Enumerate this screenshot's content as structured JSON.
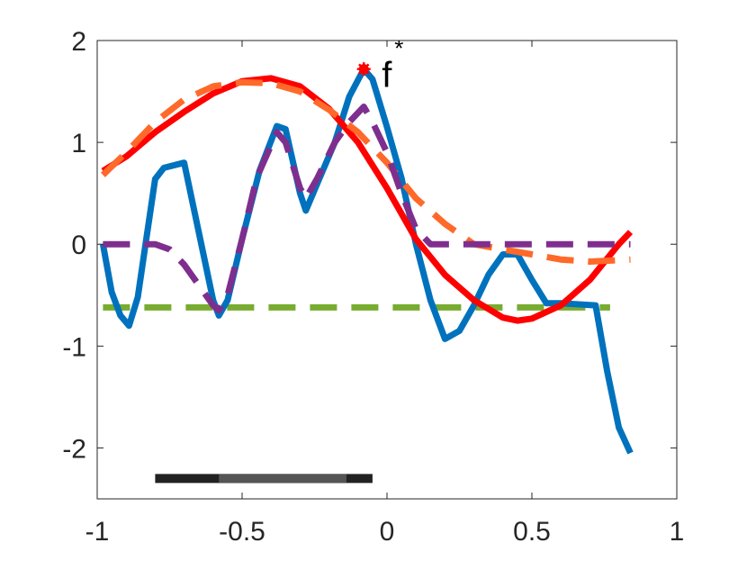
{
  "chart_data": {
    "type": "line",
    "xlim": [
      -1,
      1
    ],
    "ylim": [
      -2.5,
      2
    ],
    "x_ticks": [
      -1,
      -0.5,
      0,
      0.5,
      1
    ],
    "x_tick_labels": [
      "-1",
      "-0.5",
      "0",
      "0.5",
      "1"
    ],
    "y_ticks": [
      -2,
      -1,
      0,
      1,
      2
    ],
    "y_tick_labels": [
      "-2",
      "-1",
      "0",
      "1",
      "2"
    ],
    "grid": false,
    "series": [
      {
        "color": "#0072BD",
        "style": "solid",
        "points": [
          [
            -0.98,
            0.0
          ],
          [
            -0.95,
            -0.47
          ],
          [
            -0.92,
            -0.7
          ],
          [
            -0.89,
            -0.8
          ],
          [
            -0.86,
            -0.52
          ],
          [
            -0.83,
            0.06
          ],
          [
            -0.8,
            0.64
          ],
          [
            -0.77,
            0.75
          ],
          [
            -0.7,
            0.8
          ],
          [
            -0.6,
            -0.55
          ],
          [
            -0.58,
            -0.7
          ],
          [
            -0.55,
            -0.55
          ],
          [
            -0.5,
            0.05
          ],
          [
            -0.44,
            0.72
          ],
          [
            -0.38,
            1.16
          ],
          [
            -0.35,
            1.13
          ],
          [
            -0.3,
            0.5
          ],
          [
            -0.28,
            0.33
          ],
          [
            -0.24,
            0.6
          ],
          [
            -0.18,
            1.0
          ],
          [
            -0.13,
            1.45
          ],
          [
            -0.08,
            1.72
          ],
          [
            -0.05,
            1.62
          ],
          [
            0.0,
            1.15
          ],
          [
            0.05,
            0.65
          ],
          [
            0.1,
            0.0
          ],
          [
            0.15,
            -0.55
          ],
          [
            0.2,
            -0.93
          ],
          [
            0.25,
            -0.85
          ],
          [
            0.3,
            -0.6
          ],
          [
            0.35,
            -0.3
          ],
          [
            0.4,
            -0.1
          ],
          [
            0.45,
            -0.1
          ],
          [
            0.5,
            -0.35
          ],
          [
            0.55,
            -0.58
          ],
          [
            0.6,
            -0.58
          ],
          [
            0.72,
            -0.6
          ],
          [
            0.76,
            -1.25
          ],
          [
            0.8,
            -1.8
          ],
          [
            0.84,
            -2.05
          ]
        ]
      },
      {
        "color": "#FF0000",
        "style": "solid",
        "points": [
          [
            -0.98,
            0.72
          ],
          [
            -0.9,
            0.86
          ],
          [
            -0.8,
            1.1
          ],
          [
            -0.7,
            1.3
          ],
          [
            -0.6,
            1.48
          ],
          [
            -0.5,
            1.6
          ],
          [
            -0.4,
            1.63
          ],
          [
            -0.3,
            1.55
          ],
          [
            -0.2,
            1.33
          ],
          [
            -0.1,
            1.0
          ],
          [
            0.0,
            0.55
          ],
          [
            0.1,
            0.05
          ],
          [
            0.2,
            -0.3
          ],
          [
            0.3,
            -0.55
          ],
          [
            0.4,
            -0.72
          ],
          [
            0.45,
            -0.75
          ],
          [
            0.5,
            -0.73
          ],
          [
            0.6,
            -0.6
          ],
          [
            0.7,
            -0.35
          ],
          [
            0.8,
            0.0
          ],
          [
            0.84,
            0.12
          ]
        ]
      },
      {
        "color": "#FF6929",
        "style": "dashed",
        "points": [
          [
            -0.98,
            0.68
          ],
          [
            -0.9,
            0.9
          ],
          [
            -0.8,
            1.2
          ],
          [
            -0.7,
            1.42
          ],
          [
            -0.6,
            1.55
          ],
          [
            -0.5,
            1.59
          ],
          [
            -0.4,
            1.58
          ],
          [
            -0.3,
            1.5
          ],
          [
            -0.2,
            1.32
          ],
          [
            -0.1,
            1.1
          ],
          [
            0.0,
            0.8
          ],
          [
            0.1,
            0.45
          ],
          [
            0.2,
            0.2
          ],
          [
            0.3,
            0.0
          ],
          [
            0.4,
            -0.05
          ],
          [
            0.5,
            -0.1
          ],
          [
            0.6,
            -0.15
          ],
          [
            0.7,
            -0.17
          ],
          [
            0.84,
            -0.15
          ]
        ]
      },
      {
        "color": "#7E2F8E",
        "style": "dashed",
        "points": [
          [
            -0.98,
            0.0
          ],
          [
            -0.8,
            0.0
          ],
          [
            -0.75,
            -0.05
          ],
          [
            -0.7,
            -0.2
          ],
          [
            -0.6,
            -0.6
          ],
          [
            -0.58,
            -0.65
          ],
          [
            -0.55,
            -0.5
          ],
          [
            -0.5,
            0.05
          ],
          [
            -0.45,
            0.65
          ],
          [
            -0.38,
            1.1
          ],
          [
            -0.35,
            1.0
          ],
          [
            -0.3,
            0.55
          ],
          [
            -0.28,
            0.45
          ],
          [
            -0.24,
            0.65
          ],
          [
            -0.18,
            1.0
          ],
          [
            -0.13,
            1.2
          ],
          [
            -0.08,
            1.35
          ],
          [
            -0.05,
            1.2
          ],
          [
            0.0,
            0.9
          ],
          [
            0.05,
            0.5
          ],
          [
            0.1,
            0.15
          ],
          [
            0.15,
            0.0
          ],
          [
            0.3,
            0.0
          ],
          [
            0.84,
            0.0
          ]
        ]
      },
      {
        "color": "#77AC30",
        "style": "dashed",
        "points": [
          [
            -0.98,
            -0.62
          ],
          [
            0.77,
            -0.62
          ]
        ]
      }
    ],
    "optimum": {
      "x": -0.08,
      "y": 1.72,
      "label": "f",
      "superscript": "*"
    },
    "range_bars": [
      {
        "x_start": -0.8,
        "x_end": -0.05,
        "y": -2.3,
        "color": "#222222"
      },
      {
        "x_start": -0.58,
        "x_end": -0.14,
        "y": -2.3,
        "color": "#555555"
      }
    ]
  }
}
